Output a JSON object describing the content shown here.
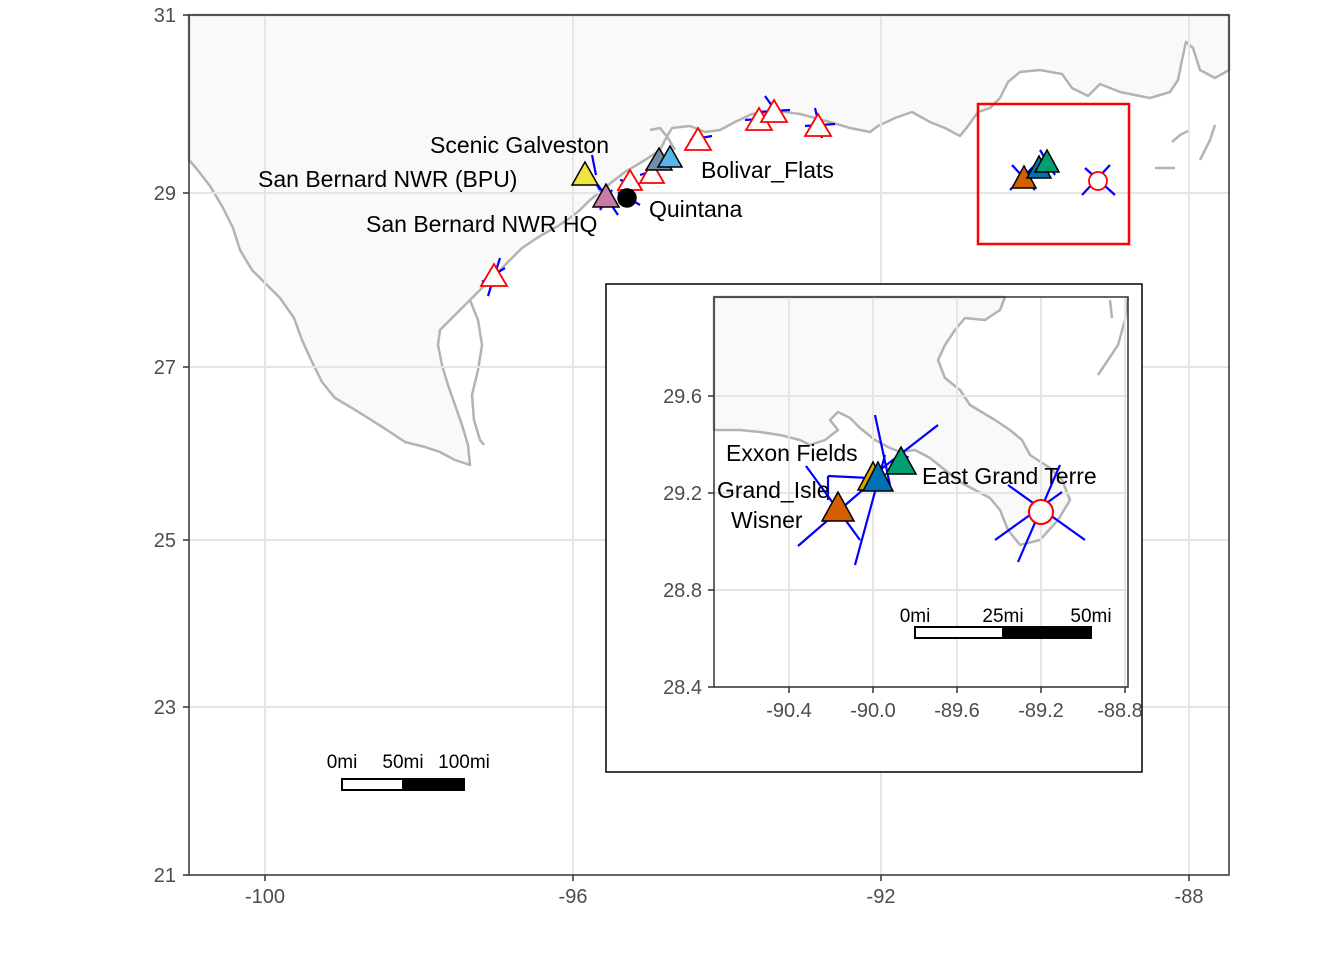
{
  "main_map": {
    "x_ticks": [
      "-100",
      "-96",
      "-92",
      "-88"
    ],
    "y_ticks": [
      "31",
      "29",
      "27",
      "25",
      "23",
      "21"
    ],
    "site_labels": [
      "Scenic Galveston",
      "San Bernard NWR (BPU)",
      "San Bernard NWR HQ",
      "Quintana",
      "Bolivar_Flats"
    ],
    "scale_bar": [
      "0mi",
      "50mi",
      "100mi"
    ],
    "colors": {
      "land": "#f9f9f9",
      "coast": "#b3b3b3",
      "grid": "#e5e5e5",
      "highlight_box": "#ff0000",
      "wind_lines": "#0000ff"
    }
  },
  "inset_map": {
    "x_ticks": [
      "-90.4",
      "-90.0",
      "-89.6",
      "-89.2",
      "-88.8"
    ],
    "y_ticks": [
      "29.6",
      "29.2",
      "28.8",
      "28.4"
    ],
    "site_labels": [
      "Exxon Fields",
      "Grand_Isle",
      "Wisner",
      "East Grand Terre"
    ],
    "scale_bar": [
      "0mi",
      "25mi",
      "50mi"
    ]
  },
  "markers": {
    "yellow": "#f0e442",
    "purple": "#cc79a7",
    "slate": "#6f8fa8",
    "sky": "#56b4e9",
    "orange": "#d55e00",
    "blue": "#0072b2",
    "green": "#009e73",
    "open_red": "#ff0000",
    "black": "#000000"
  }
}
